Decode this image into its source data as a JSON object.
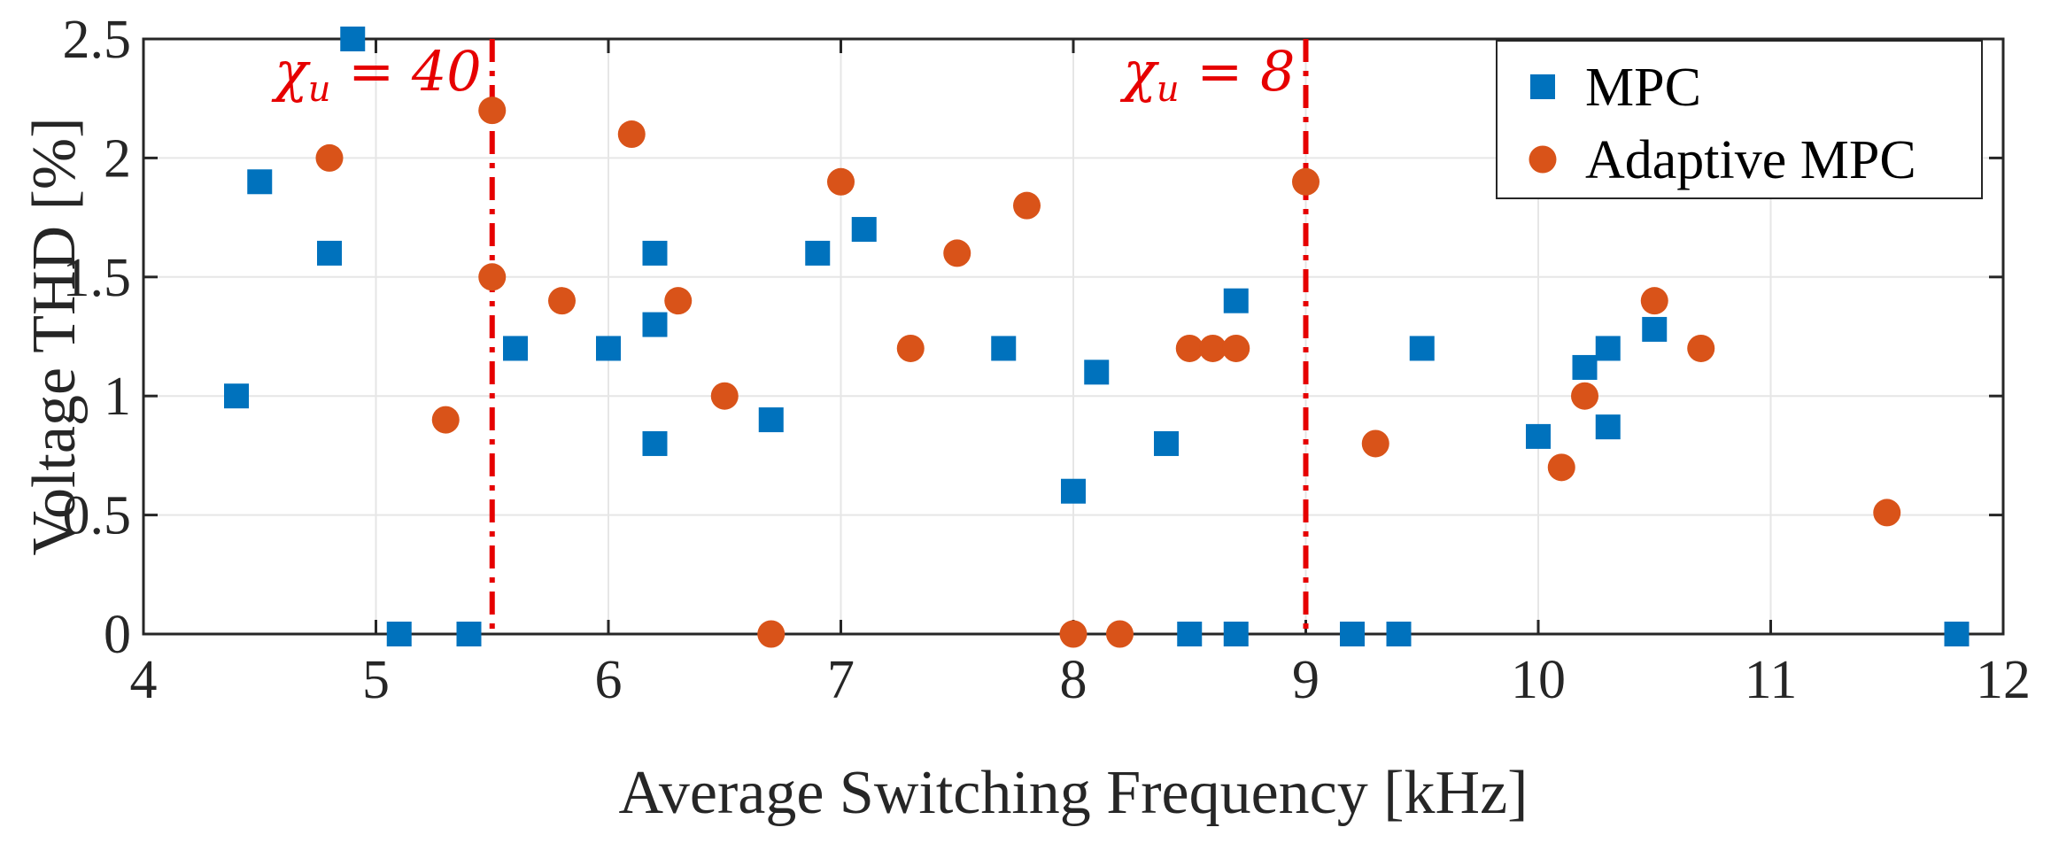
{
  "chart_data": {
    "type": "scatter",
    "title": "",
    "xlabel": "Average Switching Frequency [kHz]",
    "ylabel": "Voltage THD [%]",
    "xlim": [
      4,
      12
    ],
    "ylim": [
      0,
      2.5
    ],
    "xticks": [
      4,
      5,
      6,
      7,
      8,
      9,
      10,
      11,
      12
    ],
    "yticks": [
      0,
      0.5,
      1,
      1.5,
      2,
      2.5
    ],
    "xtick_labels": [
      "4",
      "5",
      "6",
      "7",
      "8",
      "9",
      "10",
      "11",
      "12"
    ],
    "ytick_labels": [
      "0",
      "0.5",
      "1",
      "1.5",
      "2",
      "2.5"
    ],
    "grid": true,
    "legend_position": "top-right",
    "series": [
      {
        "name": "MPC",
        "marker": "square",
        "color": "#0072bd",
        "points": [
          [
            4.4,
            1.0
          ],
          [
            4.5,
            1.9
          ],
          [
            4.8,
            1.6
          ],
          [
            4.9,
            2.5
          ],
          [
            5.1,
            0.0
          ],
          [
            5.4,
            0.0
          ],
          [
            5.6,
            1.2
          ],
          [
            6.0,
            1.2
          ],
          [
            6.2,
            1.6
          ],
          [
            6.2,
            1.3
          ],
          [
            6.2,
            0.8
          ],
          [
            6.7,
            0.9
          ],
          [
            6.9,
            1.6
          ],
          [
            7.1,
            1.7
          ],
          [
            7.7,
            1.2
          ],
          [
            8.0,
            0.6
          ],
          [
            8.1,
            1.1
          ],
          [
            8.4,
            0.8
          ],
          [
            8.5,
            0.0
          ],
          [
            8.7,
            1.4
          ],
          [
            8.7,
            0.0
          ],
          [
            9.2,
            0.0
          ],
          [
            9.4,
            0.0
          ],
          [
            9.5,
            1.2
          ],
          [
            10.0,
            0.83
          ],
          [
            10.2,
            1.12
          ],
          [
            10.3,
            1.2
          ],
          [
            10.3,
            0.87
          ],
          [
            10.5,
            1.28
          ],
          [
            11.8,
            0.0
          ]
        ]
      },
      {
        "name": "Adaptive MPC",
        "marker": "circle",
        "color": "#d95319",
        "points": [
          [
            4.8,
            2.0
          ],
          [
            5.3,
            0.9
          ],
          [
            5.5,
            2.2
          ],
          [
            5.5,
            1.5
          ],
          [
            5.8,
            1.4
          ],
          [
            6.1,
            2.1
          ],
          [
            6.3,
            1.4
          ],
          [
            6.5,
            1.0
          ],
          [
            6.7,
            0.0
          ],
          [
            7.0,
            1.9
          ],
          [
            7.3,
            1.2
          ],
          [
            7.5,
            1.6
          ],
          [
            7.8,
            1.8
          ],
          [
            8.0,
            0.0
          ],
          [
            8.2,
            0.0
          ],
          [
            8.5,
            1.2
          ],
          [
            8.6,
            1.2
          ],
          [
            8.7,
            1.2
          ],
          [
            9.0,
            1.9
          ],
          [
            9.3,
            0.8
          ],
          [
            10.1,
            0.7
          ],
          [
            10.2,
            1.0
          ],
          [
            10.5,
            1.4
          ],
          [
            10.7,
            1.2
          ],
          [
            11.5,
            0.51
          ]
        ]
      }
    ],
    "annotations": [
      {
        "x": 5.5,
        "symbol": "χ",
        "subscript": "u",
        "label": " = 40",
        "line_style": "dash-dot",
        "color": "#e60000"
      },
      {
        "x": 9.0,
        "symbol": "χ",
        "subscript": "u",
        "label": " = 8",
        "line_style": "dash-dot",
        "color": "#e60000"
      }
    ]
  }
}
